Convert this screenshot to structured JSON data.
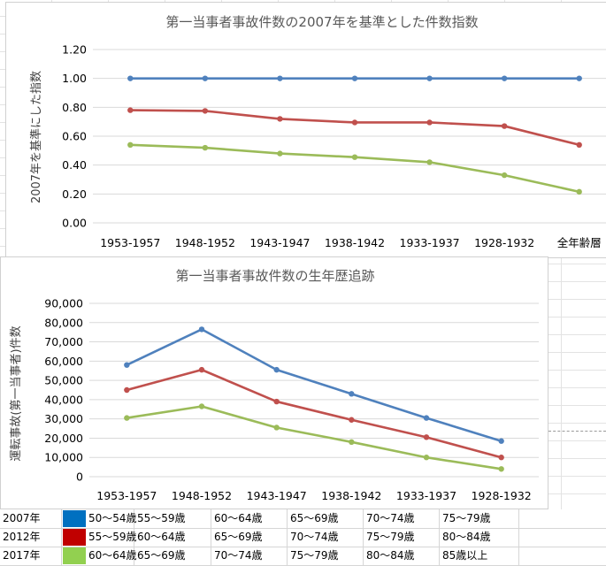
{
  "chart_data": [
    {
      "type": "line",
      "title": "第一当事者事故件数の2007年を基準とした件数指数",
      "xlabel": "",
      "ylabel": "2007年を基準にした指数",
      "categories": [
        "1953-1957",
        "1948-1952",
        "1943-1947",
        "1938-1942",
        "1933-1937",
        "1928-1932",
        "全年齢層"
      ],
      "ylim": [
        0,
        1.2
      ],
      "yticks": [
        "0.00",
        "0.20",
        "0.40",
        "0.60",
        "0.80",
        "1.00",
        "1.20"
      ],
      "grid": "horizontal",
      "legend": "none",
      "series": [
        {
          "values": [
            1.0,
            1.0,
            1.0,
            1.0,
            1.0,
            1.0,
            1.0
          ],
          "color": "#4F81BD"
        },
        {
          "values": [
            0.78,
            0.775,
            0.72,
            0.695,
            0.695,
            0.67,
            0.54
          ],
          "color": "#C0504D"
        },
        {
          "values": [
            0.54,
            0.52,
            0.48,
            0.455,
            0.42,
            0.33,
            0.215
          ],
          "color": "#9BBB59"
        }
      ]
    },
    {
      "type": "line",
      "title": "第一当事者事故件数の生年歴追跡",
      "xlabel": "",
      "ylabel": "運転事故(第一当事者)件数",
      "categories": [
        "1953-1957",
        "1948-1952",
        "1943-1947",
        "1938-1942",
        "1933-1937",
        "1928-1932"
      ],
      "ylim": [
        0,
        90000
      ],
      "yticks": [
        "0",
        "10,000",
        "20,000",
        "30,000",
        "40,000",
        "50,000",
        "60,000",
        "70,000",
        "80,000",
        "90,000"
      ],
      "grid": "horizontal",
      "legend": "none",
      "series": [
        {
          "values": [
            58000,
            76500,
            55500,
            43000,
            30500,
            18500
          ],
          "color": "#4F81BD"
        },
        {
          "values": [
            45000,
            55500,
            39000,
            29500,
            20500,
            10000
          ],
          "color": "#C0504D"
        },
        {
          "values": [
            30500,
            36500,
            25500,
            18000,
            10000,
            4000
          ],
          "color": "#9BBB59"
        }
      ]
    }
  ],
  "legend_table": {
    "rows": [
      {
        "year": "2007年",
        "color": "#0070C0",
        "ages": [
          "50～54歳",
          "55～59歳",
          "60～64歳",
          "65～69歳",
          "70～74歳",
          "75～79歳"
        ]
      },
      {
        "year": "2012年",
        "color": "#C00000",
        "ages": [
          "55～59歳",
          "60～64歳",
          "65～69歳",
          "70～74歳",
          "75～79歳",
          "80～84歳"
        ]
      },
      {
        "year": "2017年",
        "color": "#92D050",
        "ages": [
          "60～64歳",
          "65～69歳",
          "70～74歳",
          "75～79歳",
          "80～84歳",
          "85歳以上"
        ]
      }
    ]
  }
}
